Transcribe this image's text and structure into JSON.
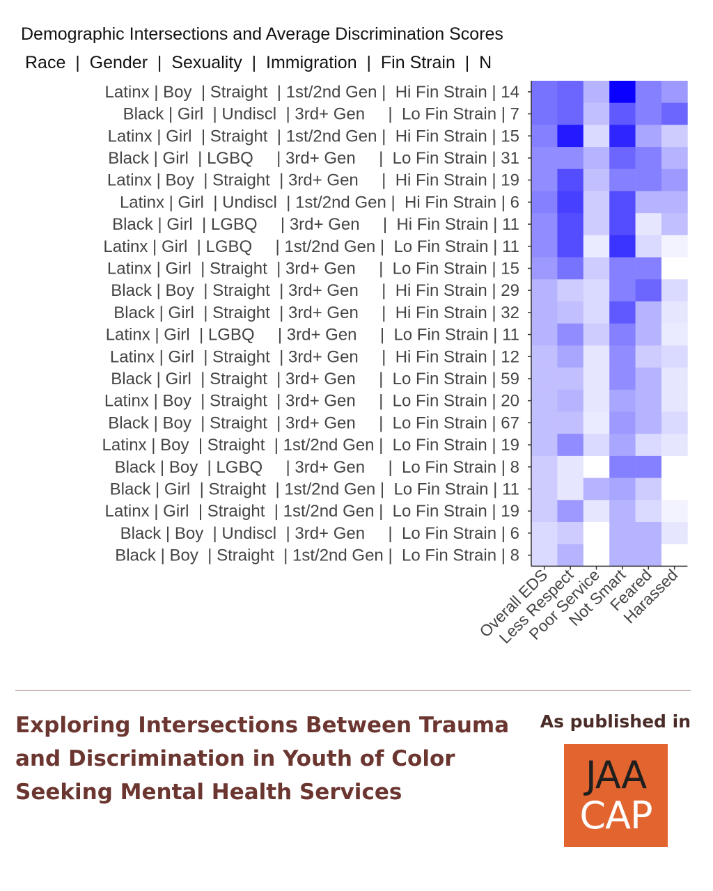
{
  "chart_data": {
    "type": "heatmap",
    "title": "Demographic Intersections and Average Discrimination Scores",
    "subtitle": "Race  |  Gender  |  Sexuality  |  Immigration  |  Fin Strain  |  N",
    "columns": [
      "Overall EDS",
      "Less Respect",
      "Poor Service",
      "Not Smart",
      "Feared",
      "Harassed"
    ],
    "rows": [
      {
        "label": "Latinx | Boy  | Straight  | 1st/2nd Gen |  Hi Fin Strain | 14",
        "values": [
          0.55,
          0.6,
          0.3,
          1.0,
          0.5,
          0.4
        ]
      },
      {
        "label": "Black | Girl  | Undiscl  | 3rd+ Gen     |  Lo Fin Strain | 7",
        "values": [
          0.55,
          0.6,
          0.25,
          0.65,
          0.5,
          0.6
        ]
      },
      {
        "label": "Latinx | Girl  | Straight  | 1st/2nd Gen |  Hi Fin Strain | 15",
        "values": [
          0.5,
          0.9,
          0.15,
          0.85,
          0.35,
          0.2
        ]
      },
      {
        "label": "Black | Girl  | LGBQ     | 3rd+ Gen     |  Lo Fin Strain | 31",
        "values": [
          0.45,
          0.45,
          0.3,
          0.6,
          0.5,
          0.3
        ]
      },
      {
        "label": "Latinx | Boy  | Straight  | 3rd+ Gen     |  Hi Fin Strain | 19",
        "values": [
          0.45,
          0.7,
          0.25,
          0.5,
          0.5,
          0.4
        ]
      },
      {
        "label": "Latinx | Girl  | Undiscl  | 1st/2nd Gen |  Hi Fin Strain | 6",
        "values": [
          0.5,
          0.75,
          0.2,
          0.7,
          0.3,
          0.3
        ]
      },
      {
        "label": "Black | Girl  | LGBQ     | 3rd+ Gen     |  Hi Fin Strain | 11",
        "values": [
          0.45,
          0.7,
          0.2,
          0.7,
          0.1,
          0.25
        ]
      },
      {
        "label": "Latinx | Girl  | LGBQ     | 1st/2nd Gen |  Lo Fin Strain | 11",
        "values": [
          0.45,
          0.7,
          0.08,
          0.8,
          0.15,
          0.05
        ]
      },
      {
        "label": "Latinx | Girl  | Straight  | 3rd+ Gen     |  Lo Fin Strain | 15",
        "values": [
          0.4,
          0.55,
          0.2,
          0.5,
          0.5,
          0.0
        ]
      },
      {
        "label": "Black | Boy  | Straight  | 3rd+ Gen     |  Hi Fin Strain | 29",
        "values": [
          0.3,
          0.2,
          0.15,
          0.5,
          0.6,
          0.15
        ]
      },
      {
        "label": "Black | Girl  | Straight  | 3rd+ Gen     |  Hi Fin Strain | 32",
        "values": [
          0.3,
          0.25,
          0.15,
          0.65,
          0.3,
          0.1
        ]
      },
      {
        "label": "Latinx | Girl  | LGBQ     | 3rd+ Gen     |  Lo Fin Strain | 11",
        "values": [
          0.3,
          0.45,
          0.2,
          0.5,
          0.3,
          0.08
        ]
      },
      {
        "label": "Latinx | Girl  | Straight  | 3rd+ Gen     |  Hi Fin Strain | 12",
        "values": [
          0.25,
          0.35,
          0.1,
          0.45,
          0.2,
          0.15
        ]
      },
      {
        "label": "Black | Girl  | Straight  | 3rd+ Gen     |  Lo Fin Strain | 59",
        "values": [
          0.25,
          0.25,
          0.1,
          0.45,
          0.3,
          0.1
        ]
      },
      {
        "label": "Latinx | Boy  | Straight  | 3rd+ Gen     |  Lo Fin Strain | 20",
        "values": [
          0.25,
          0.3,
          0.1,
          0.35,
          0.3,
          0.1
        ]
      },
      {
        "label": "Black | Boy  | Straight  | 3rd+ Gen     |  Lo Fin Strain | 67",
        "values": [
          0.25,
          0.25,
          0.08,
          0.4,
          0.3,
          0.15
        ]
      },
      {
        "label": "Latinx | Boy  | Straight  | 1st/2nd Gen |  Lo Fin Strain | 19",
        "values": [
          0.25,
          0.45,
          0.15,
          0.35,
          0.15,
          0.1
        ]
      },
      {
        "label": "Black | Boy  | LGBQ     | 3rd+ Gen     |  Lo Fin Strain | 8",
        "values": [
          0.2,
          0.1,
          0.0,
          0.5,
          0.5,
          0.0
        ]
      },
      {
        "label": "Black | Girl  | Straight  | 1st/2nd Gen |  Lo Fin Strain | 11",
        "values": [
          0.2,
          0.1,
          0.3,
          0.35,
          0.2,
          0.0
        ]
      },
      {
        "label": "Latinx | Girl  | Straight  | 1st/2nd Gen |  Lo Fin Strain | 19",
        "values": [
          0.2,
          0.4,
          0.1,
          0.3,
          0.15,
          0.05
        ]
      },
      {
        "label": "Black | Boy  | Undiscl  | 3rd+ Gen     |  Lo Fin Strain | 6",
        "values": [
          0.15,
          0.2,
          0.0,
          0.3,
          0.3,
          0.1
        ]
      },
      {
        "label": "Black | Boy  | Straight  | 1st/2nd Gen |  Lo Fin Strain | 8",
        "values": [
          0.15,
          0.3,
          0.0,
          0.3,
          0.3,
          0.0
        ]
      }
    ],
    "color_low": "#ffffff",
    "color_high": "#0a00ff",
    "grid": false,
    "legend": "none"
  },
  "footer": {
    "paper_title": "Exploring Intersections Between Trauma and Discrimination in Youth of Color Seeking Mental Health Services",
    "published_label": "As published in",
    "logo_line1": "JAA",
    "logo_line2": "CAP",
    "logo_color": "#e2642f",
    "title_color": "#6b3530"
  }
}
